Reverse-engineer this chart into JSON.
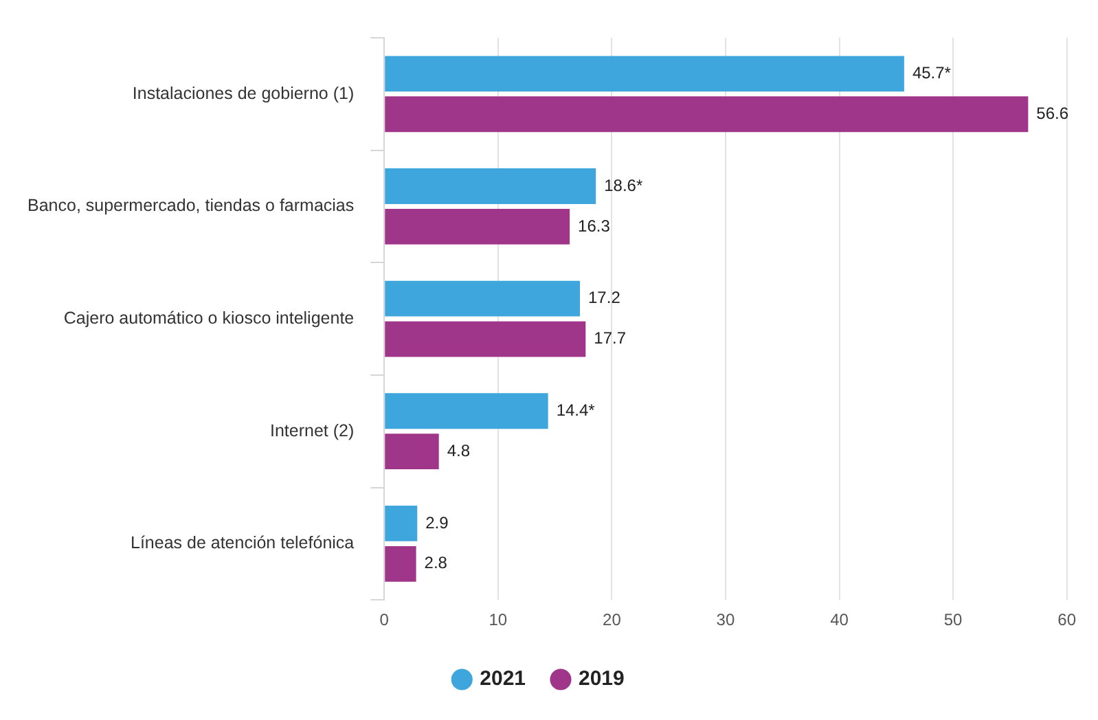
{
  "chart_data": {
    "type": "bar",
    "orientation": "horizontal",
    "categories": [
      "Instalaciones de gobierno (1)",
      "Banco, supermercado, tiendas o farmacias",
      "Cajero automático o kiosco inteligente",
      "Internet (2)",
      "Líneas de atención telefónica"
    ],
    "series": [
      {
        "name": "2021",
        "color": "#3ea6dc",
        "values": [
          45.7,
          18.6,
          17.2,
          14.4,
          2.9
        ],
        "value_labels": [
          "45.7*",
          "18.6*",
          "17.2",
          "14.4*",
          "2.9"
        ]
      },
      {
        "name": "2019",
        "color": "#a0368a",
        "values": [
          56.6,
          16.3,
          17.7,
          4.8,
          2.8
        ],
        "value_labels": [
          "56.6",
          "16.3",
          "17.7",
          "4.8",
          "2.8"
        ]
      }
    ],
    "xlim": [
      0,
      60
    ],
    "xticks": [
      0,
      10,
      20,
      30,
      40,
      50,
      60
    ],
    "grid": "x",
    "legend": "bottom"
  }
}
